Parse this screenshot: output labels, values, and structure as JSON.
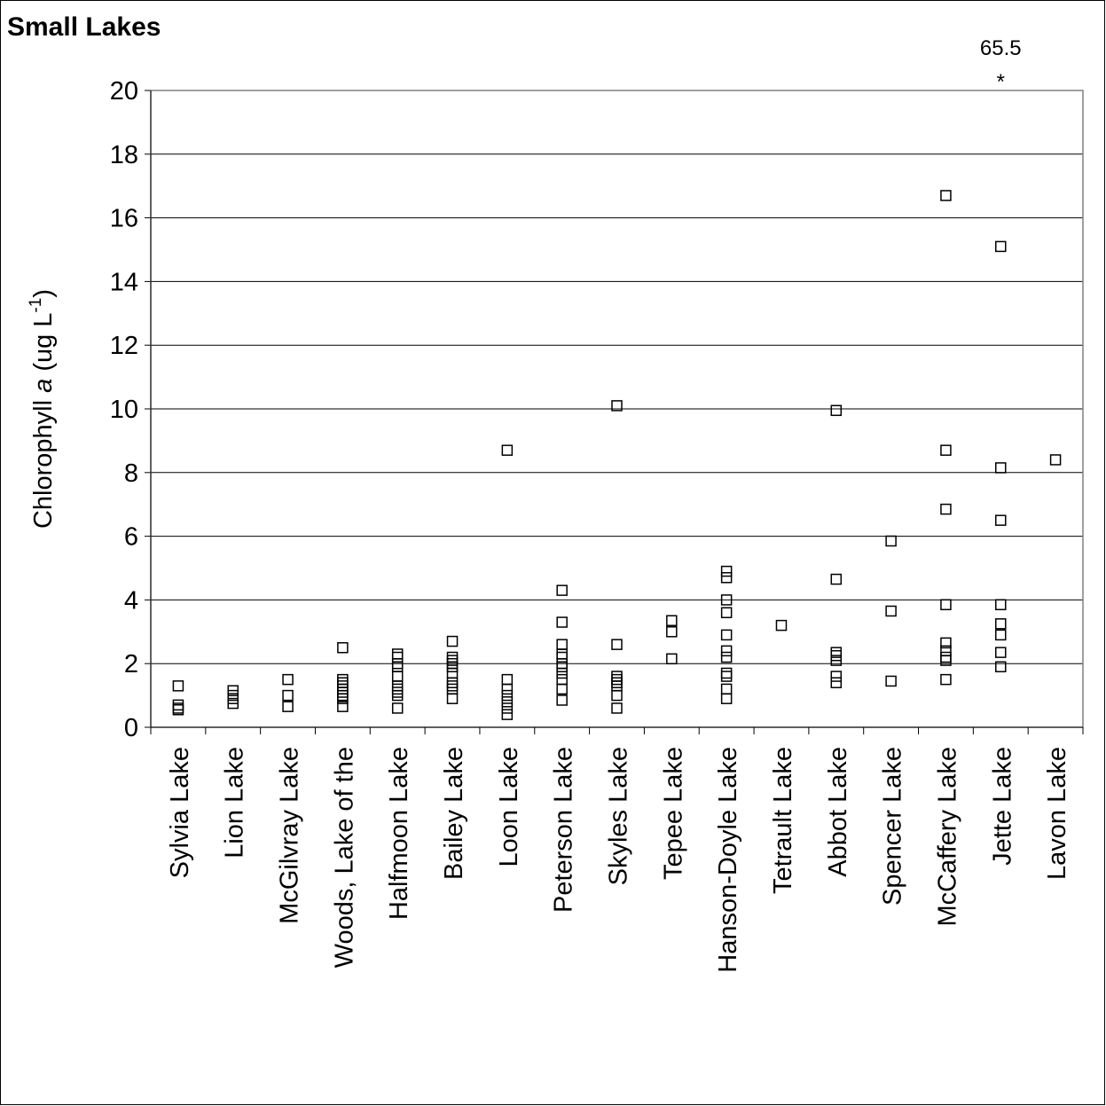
{
  "chart_data": {
    "type": "strip",
    "title": "Small Lakes",
    "ylabel": [
      "Chlorophyll ",
      "a",
      "  (ug L",
      "-1",
      ")"
    ],
    "categories": [
      "Sylvia Lake",
      "Lion Lake",
      "McGilvray Lake",
      "Woods, Lake of the",
      "Halfmoon Lake",
      "Bailey Lake",
      "Loon Lake",
      "Peterson Lake",
      "Skyles Lake",
      "Tepee Lake",
      "Hanson-Doyle Lake",
      "Tetrault Lake",
      "Abbot Lake",
      "Spencer Lake",
      "McCaffery Lake",
      "Jette Lake",
      "Lavon Lake"
    ],
    "values": [
      [
        1.3,
        0.7,
        0.6,
        0.55
      ],
      [
        1.15,
        1.0,
        0.9,
        0.75
      ],
      [
        1.5,
        1.0,
        0.65
      ],
      [
        2.5,
        1.5,
        1.4,
        1.3,
        1.2,
        1.1,
        1.0,
        0.9,
        0.65
      ],
      [
        2.3,
        2.2,
        2.0,
        1.9,
        1.6,
        1.3,
        1.2,
        1.1,
        1.0,
        0.6
      ],
      [
        2.7,
        2.2,
        2.1,
        2.0,
        1.9,
        1.7,
        1.4,
        1.3,
        1.2,
        0.9
      ],
      [
        8.7,
        1.5,
        1.2,
        1.0,
        0.8,
        0.6,
        0.4
      ],
      [
        4.3,
        3.3,
        2.6,
        2.3,
        2.2,
        2.0,
        1.9,
        1.7,
        1.5,
        1.2,
        0.85
      ],
      [
        10.1,
        2.6,
        1.6,
        1.5,
        1.4,
        1.3,
        1.0,
        0.6
      ],
      [
        3.35,
        3.0,
        2.15
      ],
      [
        4.9,
        4.7,
        4.0,
        3.6,
        2.9,
        2.4,
        2.2,
        1.7,
        1.6,
        1.2,
        0.9
      ],
      [
        3.2
      ],
      [
        9.95,
        4.65,
        2.35,
        2.25,
        2.1,
        1.6,
        1.4
      ],
      [
        5.85,
        3.65,
        1.45
      ],
      [
        16.7,
        8.7,
        6.85,
        3.85,
        2.65,
        2.4,
        2.2,
        2.1,
        1.5
      ],
      [
        65.5,
        15.1,
        8.15,
        6.5,
        3.85,
        3.25,
        2.9,
        2.35,
        1.9
      ],
      [
        8.4
      ]
    ],
    "offscale_marker": "*",
    "color": "#000000",
    "ylim": [
      0,
      20
    ],
    "yticks": [
      0,
      2,
      4,
      6,
      8,
      10,
      12,
      14,
      16,
      18,
      20
    ],
    "grid": true
  }
}
